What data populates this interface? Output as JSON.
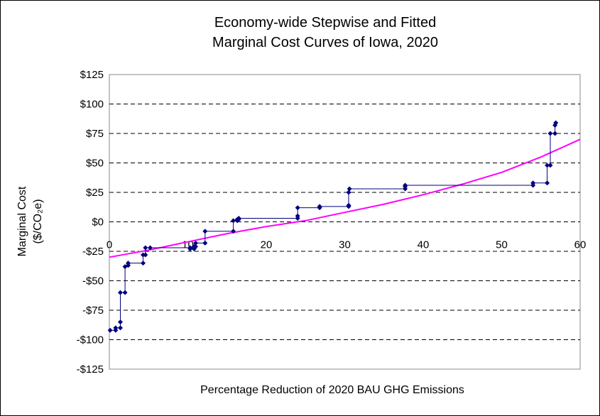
{
  "chart_data": {
    "type": "line",
    "title_lines": [
      "Economy-wide Stepwise and Fitted",
      "Marginal Cost Curves of Iowa, 2020"
    ],
    "xlabel": "Percentage Reduction of 2020 BAU GHG Emissions",
    "ylabel_lines": [
      "Marginal Cost",
      "($/CO₂e)"
    ],
    "xlim": [
      0,
      60
    ],
    "ylim": [
      -125,
      125
    ],
    "x_ticks": [
      0,
      10,
      20,
      30,
      40,
      50,
      60
    ],
    "x_tick_labels": [
      "0",
      "10",
      "20",
      "30",
      "40",
      "50",
      "60"
    ],
    "y_ticks": [
      125,
      100,
      75,
      50,
      25,
      0,
      -25,
      -50,
      -75,
      -100,
      -125
    ],
    "y_tick_labels": [
      "$125",
      "$100",
      "$75",
      "$50",
      "$25",
      "$0",
      "-$25",
      "-$50",
      "-$75",
      "-$100",
      "-$125"
    ],
    "grid": "horizontal-dashed",
    "colors": {
      "stepwise": "#000080",
      "fitted": "#ff00ff"
    },
    "series": [
      {
        "type": "step",
        "points": [
          [
            0.1,
            -92
          ],
          [
            0.8,
            -92
          ],
          [
            0.8,
            -90
          ],
          [
            1.4,
            -90
          ],
          [
            1.4,
            -85
          ],
          [
            1.4,
            -60
          ],
          [
            2.0,
            -60
          ],
          [
            2.0,
            -38
          ],
          [
            2.4,
            -37
          ],
          [
            2.4,
            -35
          ],
          [
            4.3,
            -35
          ],
          [
            4.3,
            -28
          ],
          [
            4.6,
            -28
          ],
          [
            4.6,
            -22
          ],
          [
            5.2,
            -22
          ],
          [
            10.3,
            -22
          ],
          [
            10.3,
            -23
          ],
          [
            10.8,
            -23
          ],
          [
            10.8,
            -21
          ],
          [
            11.0,
            -21
          ],
          [
            11.0,
            -18
          ],
          [
            12.2,
            -18
          ],
          [
            12.2,
            -8
          ],
          [
            15.8,
            -8
          ],
          [
            15.8,
            1
          ],
          [
            16.3,
            1
          ],
          [
            16.3,
            2
          ],
          [
            16.5,
            2
          ],
          [
            16.5,
            3
          ],
          [
            24.0,
            3
          ],
          [
            24.0,
            5
          ],
          [
            24.0,
            12
          ],
          [
            26.8,
            12
          ],
          [
            26.8,
            13
          ],
          [
            30.5,
            13
          ],
          [
            30.5,
            14
          ],
          [
            30.5,
            25
          ],
          [
            30.6,
            28
          ],
          [
            37.7,
            28
          ],
          [
            37.7,
            30
          ],
          [
            37.7,
            31
          ],
          [
            54.0,
            31
          ],
          [
            54.0,
            33
          ],
          [
            55.8,
            33
          ],
          [
            55.8,
            48
          ],
          [
            56.2,
            48
          ],
          [
            56.2,
            75
          ],
          [
            56.8,
            75
          ],
          [
            56.8,
            82
          ],
          [
            56.9,
            84
          ]
        ]
      },
      {
        "type": "fitted",
        "x": [
          0,
          5,
          10,
          15,
          20,
          25,
          30,
          35,
          40,
          45,
          50,
          55,
          60
        ],
        "y": [
          -30,
          -24,
          -17,
          -10,
          -4,
          1,
          8,
          15,
          23,
          32,
          42,
          55,
          70
        ]
      }
    ]
  }
}
